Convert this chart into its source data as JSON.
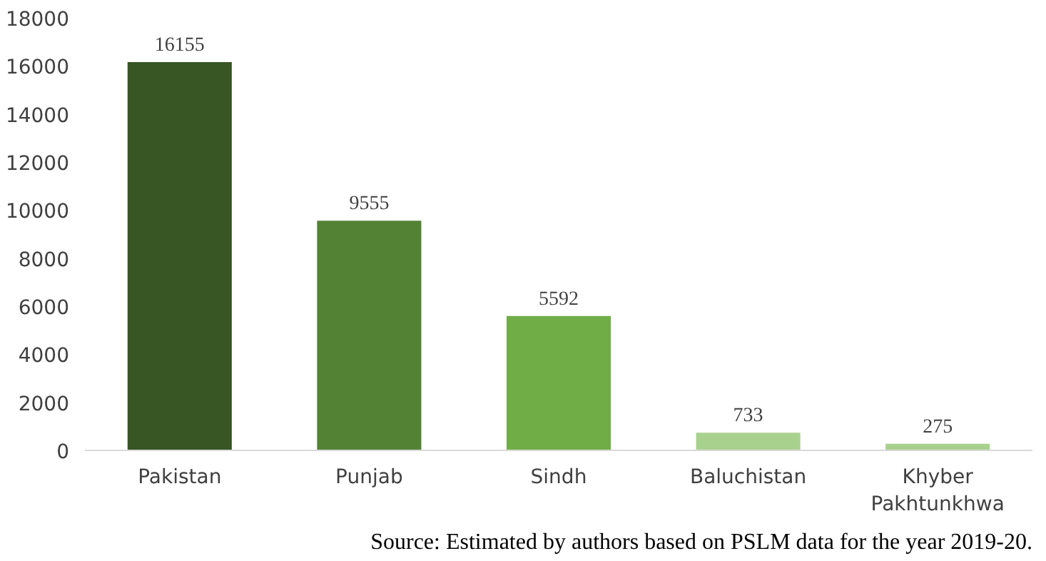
{
  "chart_data": {
    "type": "bar",
    "categories": [
      "Pakistan",
      "Punjab",
      "Sindh",
      "Baluchistan",
      "Khyber Pakhtunkhwa"
    ],
    "values": [
      16155,
      9555,
      5592,
      733,
      275
    ],
    "colors": [
      "#375623",
      "#548235",
      "#70ad47",
      "#a9d18e",
      "#a9d18e"
    ],
    "ylim": [
      0,
      18000
    ],
    "yticks": [
      0,
      2000,
      4000,
      6000,
      8000,
      10000,
      12000,
      14000,
      16000,
      18000
    ],
    "grid": false,
    "data_labels": true,
    "annotations": [
      "Source: Estimated by authors based on PSLM data for the year 2019-20."
    ]
  }
}
